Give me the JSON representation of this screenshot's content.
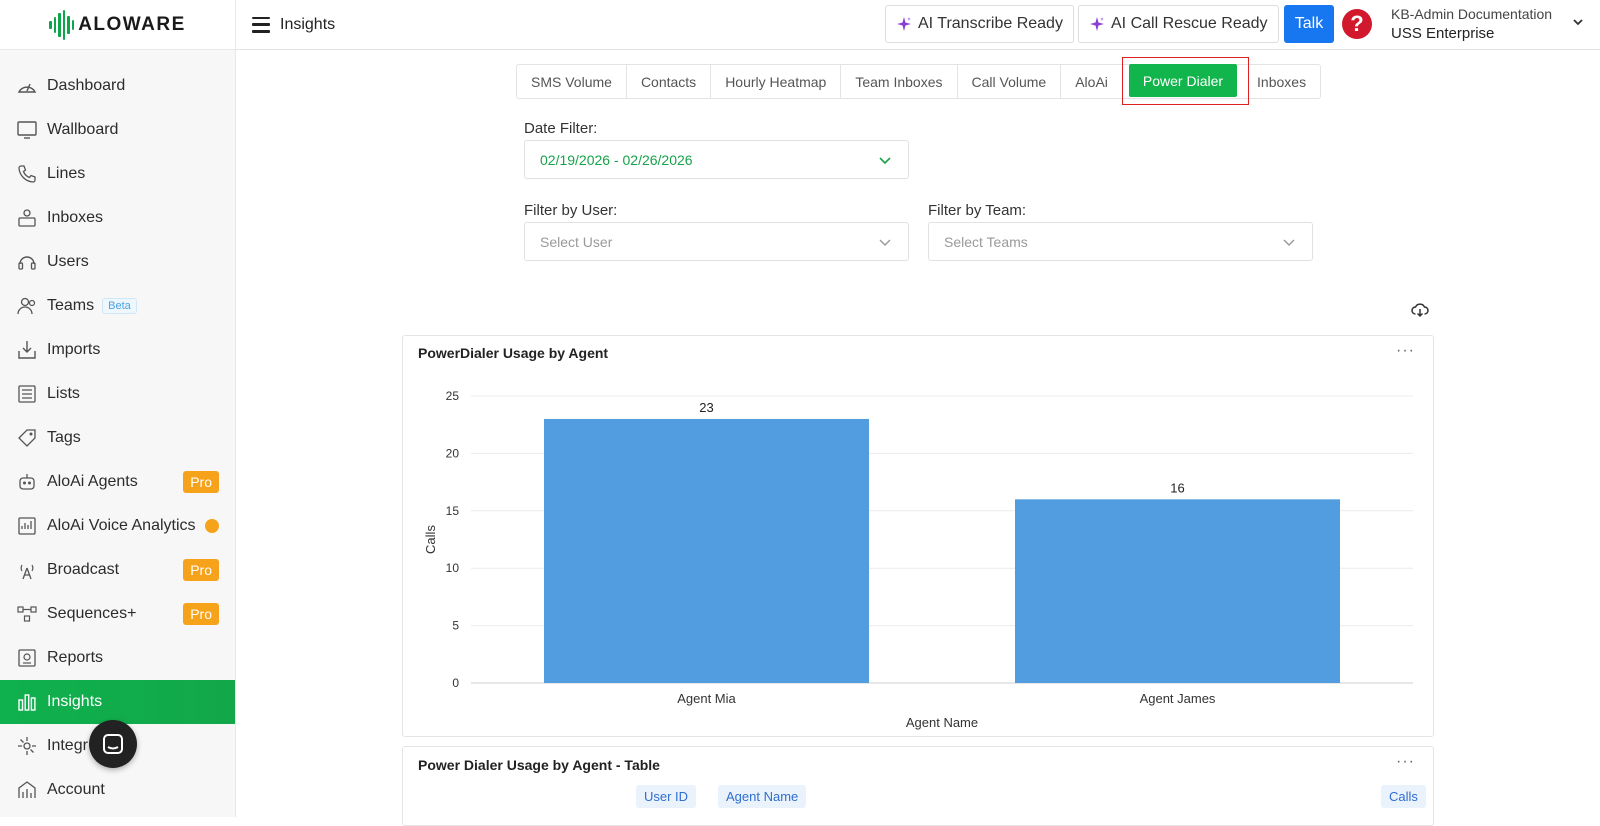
{
  "app": {
    "brand": "ALOWARE",
    "page_title": "Insights"
  },
  "sidebar": {
    "items": [
      {
        "label": "Dashboard",
        "icon": "dashboard-icon"
      },
      {
        "label": "Wallboard",
        "icon": "monitor-icon"
      },
      {
        "label": "Lines",
        "icon": "phone-icon"
      },
      {
        "label": "Inboxes",
        "icon": "inbox-icon"
      },
      {
        "label": "Users",
        "icon": "headset-icon"
      },
      {
        "label": "Teams",
        "icon": "teams-icon",
        "badge": "Beta"
      },
      {
        "label": "Imports",
        "icon": "import-icon"
      },
      {
        "label": "Lists",
        "icon": "list-icon"
      },
      {
        "label": "Tags",
        "icon": "tag-icon"
      },
      {
        "label": "AloAi Agents",
        "icon": "robot-icon",
        "badge": "Pro"
      },
      {
        "label": "AloAi Voice Analytics",
        "icon": "analytics-icon"
      },
      {
        "label": "Broadcast",
        "icon": "broadcast-icon",
        "badge": "Pro"
      },
      {
        "label": "Sequences+",
        "icon": "sequence-icon",
        "badge": "Pro"
      },
      {
        "label": "Reports",
        "icon": "report-icon"
      },
      {
        "label": "Insights",
        "icon": "insights-icon",
        "active": true
      },
      {
        "label": "Integr",
        "icon": "integrations-icon"
      },
      {
        "label": "Account",
        "icon": "account-icon"
      }
    ]
  },
  "header": {
    "ai_transcribe": "AI Transcribe Ready",
    "ai_call_rescue": "AI Call Rescue Ready",
    "talk": "Talk",
    "help": "?",
    "account_line1": "KB-Admin Documentation",
    "account_line2": "USS Enterprise"
  },
  "tabs": [
    "SMS Volume",
    "Contacts",
    "Hourly Heatmap",
    "Team Inboxes",
    "Call Volume",
    "AloAi",
    "Power Dialer",
    "Inboxes"
  ],
  "active_tab": "Power Dialer",
  "filters": {
    "date_label": "Date Filter:",
    "date_value": "02/19/2026 - 02/26/2026",
    "user_label": "Filter by User:",
    "user_placeholder": "Select User",
    "team_label": "Filter by Team:",
    "team_placeholder": "Select Teams"
  },
  "chart_card": {
    "title": "PowerDialer Usage by Agent",
    "more": "···"
  },
  "table_card": {
    "title": "Power Dialer Usage by Agent - Table",
    "more": "···",
    "columns": [
      "User ID",
      "Agent Name",
      "Calls"
    ]
  },
  "chart_data": {
    "type": "bar",
    "title": "PowerDialer Usage by Agent",
    "categories": [
      "Agent Mia",
      "Agent James"
    ],
    "values": [
      23,
      16
    ],
    "xlabel": "Agent Name",
    "ylabel": "Calls",
    "ylim": [
      0,
      25
    ],
    "yticks": [
      0,
      5,
      10,
      15,
      20,
      25
    ],
    "grid": true,
    "bar_color": "#519de0",
    "data_labels": true
  },
  "colors": {
    "accent_green": "#12b54b",
    "talk_blue": "#1677f0",
    "help_red": "#d1182c",
    "pro_orange": "#f7a21b",
    "ai_purple": "#8a3fd1"
  }
}
